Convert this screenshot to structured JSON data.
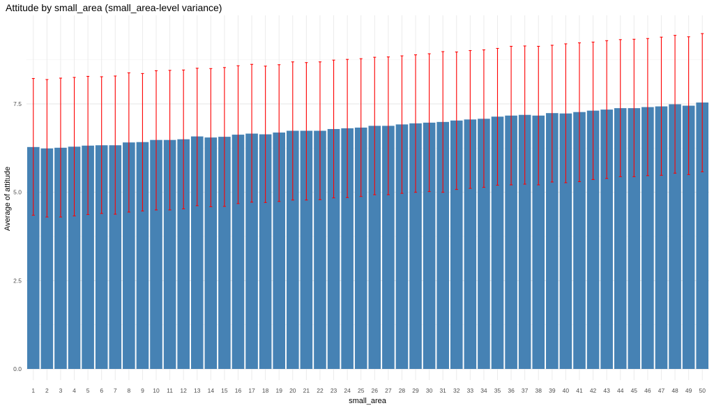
{
  "chart_data": {
    "type": "bar",
    "title": "Attitude by small_area (small_area-level variance)",
    "xlabel": "small_area",
    "ylabel": "Average of attitude",
    "ylim": [
      0,
      9.6
    ],
    "yticks": [
      "0.0",
      "2.5",
      "5.0",
      "7.5"
    ],
    "ytick_values": [
      0,
      2.5,
      5,
      7.5
    ],
    "grid": true,
    "bar_color": "#4682B4",
    "error_color": "#FF0000",
    "categories": [
      "1",
      "2",
      "3",
      "4",
      "5",
      "6",
      "7",
      "8",
      "9",
      "10",
      "11",
      "12",
      "13",
      "14",
      "15",
      "16",
      "17",
      "18",
      "19",
      "20",
      "21",
      "22",
      "23",
      "24",
      "25",
      "26",
      "27",
      "28",
      "29",
      "30",
      "31",
      "32",
      "33",
      "34",
      "35",
      "36",
      "37",
      "38",
      "39",
      "40",
      "41",
      "42",
      "43",
      "44",
      "45",
      "46",
      "47",
      "48",
      "49",
      "50"
    ],
    "values": [
      6.28,
      6.24,
      6.26,
      6.29,
      6.32,
      6.33,
      6.33,
      6.41,
      6.42,
      6.48,
      6.48,
      6.5,
      6.58,
      6.55,
      6.57,
      6.63,
      6.66,
      6.64,
      6.69,
      6.74,
      6.74,
      6.74,
      6.79,
      6.81,
      6.83,
      6.88,
      6.88,
      6.92,
      6.95,
      6.97,
      6.99,
      7.03,
      7.06,
      7.08,
      7.14,
      7.17,
      7.19,
      7.17,
      7.24,
      7.23,
      7.27,
      7.31,
      7.34,
      7.38,
      7.38,
      7.41,
      7.43,
      7.49,
      7.45,
      7.54
    ],
    "error_low": [
      4.35,
      4.3,
      4.3,
      4.33,
      4.37,
      4.4,
      4.38,
      4.44,
      4.47,
      4.5,
      4.5,
      4.53,
      4.62,
      4.59,
      4.6,
      4.68,
      4.72,
      4.71,
      4.74,
      4.78,
      4.78,
      4.79,
      4.84,
      4.85,
      4.88,
      4.93,
      4.93,
      4.97,
      5.0,
      5.02,
      5.0,
      5.08,
      5.11,
      5.14,
      5.2,
      5.21,
      5.23,
      5.21,
      5.29,
      5.27,
      5.3,
      5.36,
      5.39,
      5.44,
      5.44,
      5.47,
      5.48,
      5.54,
      5.5,
      5.58
    ],
    "error_high": [
      8.22,
      8.19,
      8.23,
      8.25,
      8.28,
      8.27,
      8.29,
      8.38,
      8.36,
      8.44,
      8.45,
      8.46,
      8.51,
      8.5,
      8.53,
      8.58,
      8.62,
      8.57,
      8.61,
      8.69,
      8.67,
      8.69,
      8.74,
      8.76,
      8.78,
      8.82,
      8.83,
      8.86,
      8.89,
      8.92,
      8.98,
      8.97,
      9.01,
      9.03,
      9.07,
      9.13,
      9.14,
      9.13,
      9.16,
      9.2,
      9.23,
      9.25,
      9.29,
      9.32,
      9.33,
      9.35,
      9.39,
      9.44,
      9.4,
      9.49
    ]
  }
}
